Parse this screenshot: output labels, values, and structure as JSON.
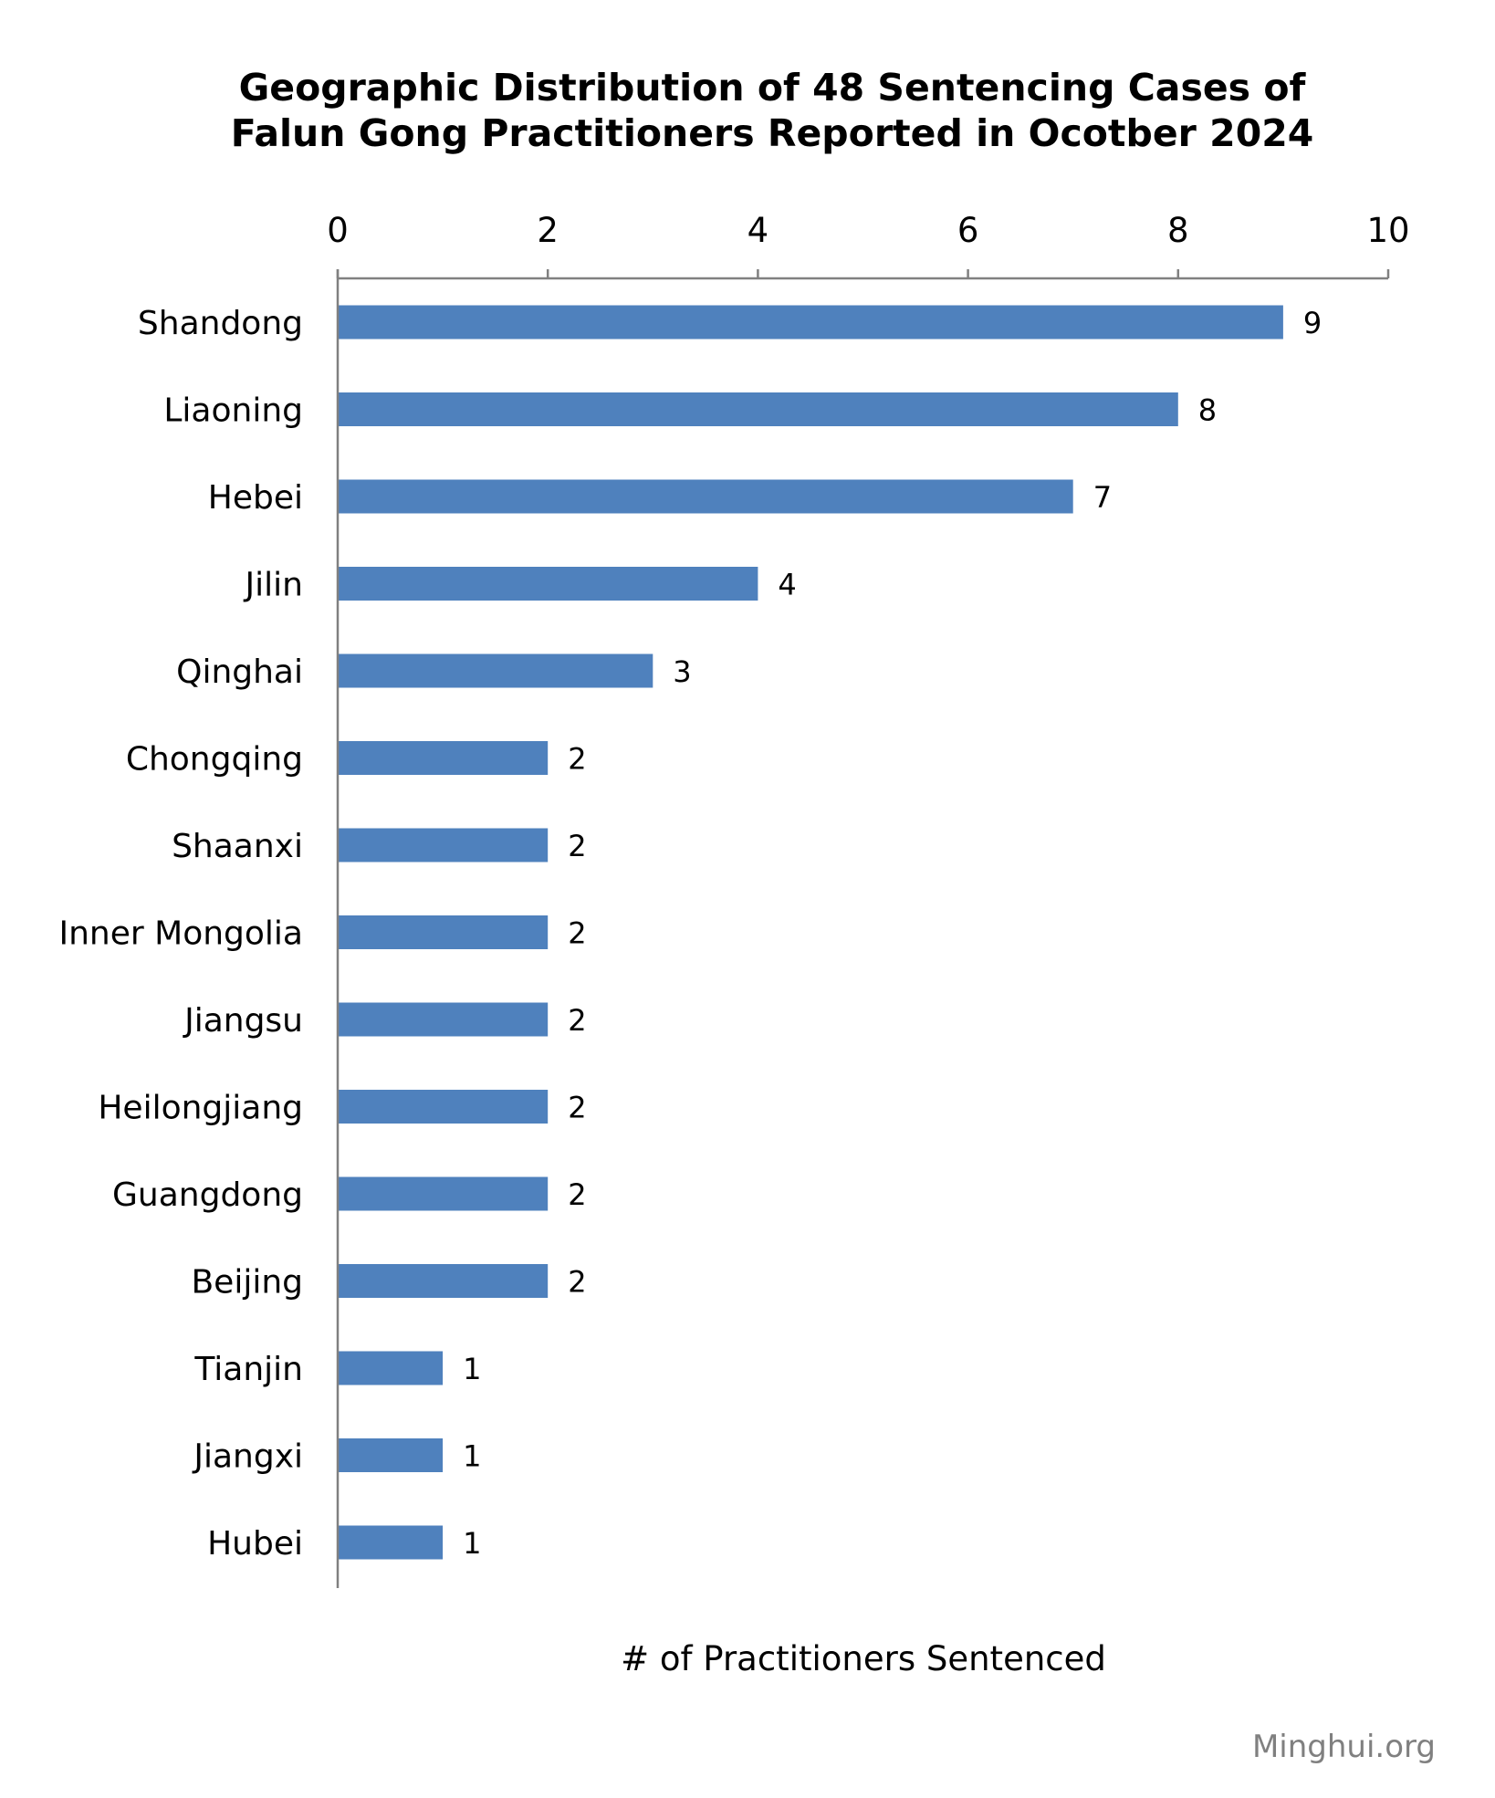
{
  "chart_data": {
    "type": "bar",
    "orientation": "horizontal",
    "title": "Geographic Distribution of 48 Sentencing Cases of Falun Gong Practitioners Reported in Ocotber 2024",
    "title_lines": [
      "Geographic Distribution of 48 Sentencing Cases of",
      "Falun Gong Practitioners Reported in Ocotber 2024"
    ],
    "categories": [
      "Shandong",
      "Liaoning",
      "Hebei",
      "Jilin",
      "Qinghai",
      "Chongqing",
      "Shaanxi",
      "Inner Mongolia",
      "Jiangsu",
      "Heilongjiang",
      "Guangdong",
      "Beijing",
      "Tianjin",
      "Jiangxi",
      "Hubei"
    ],
    "values": [
      9,
      8,
      7,
      4,
      3,
      2,
      2,
      2,
      2,
      2,
      2,
      2,
      1,
      1,
      1
    ],
    "xlabel": "# of Practitioners Sentenced",
    "ylabel": "",
    "xlim": [
      0,
      10
    ],
    "x_ticks": [
      0,
      2,
      4,
      6,
      8,
      10
    ],
    "x_axis_position": "top",
    "grid": false,
    "legend": "none",
    "data_labels": true,
    "bar_color": "#4F81BD",
    "axis_color": "#808080"
  },
  "source_text": "Minghui.org"
}
